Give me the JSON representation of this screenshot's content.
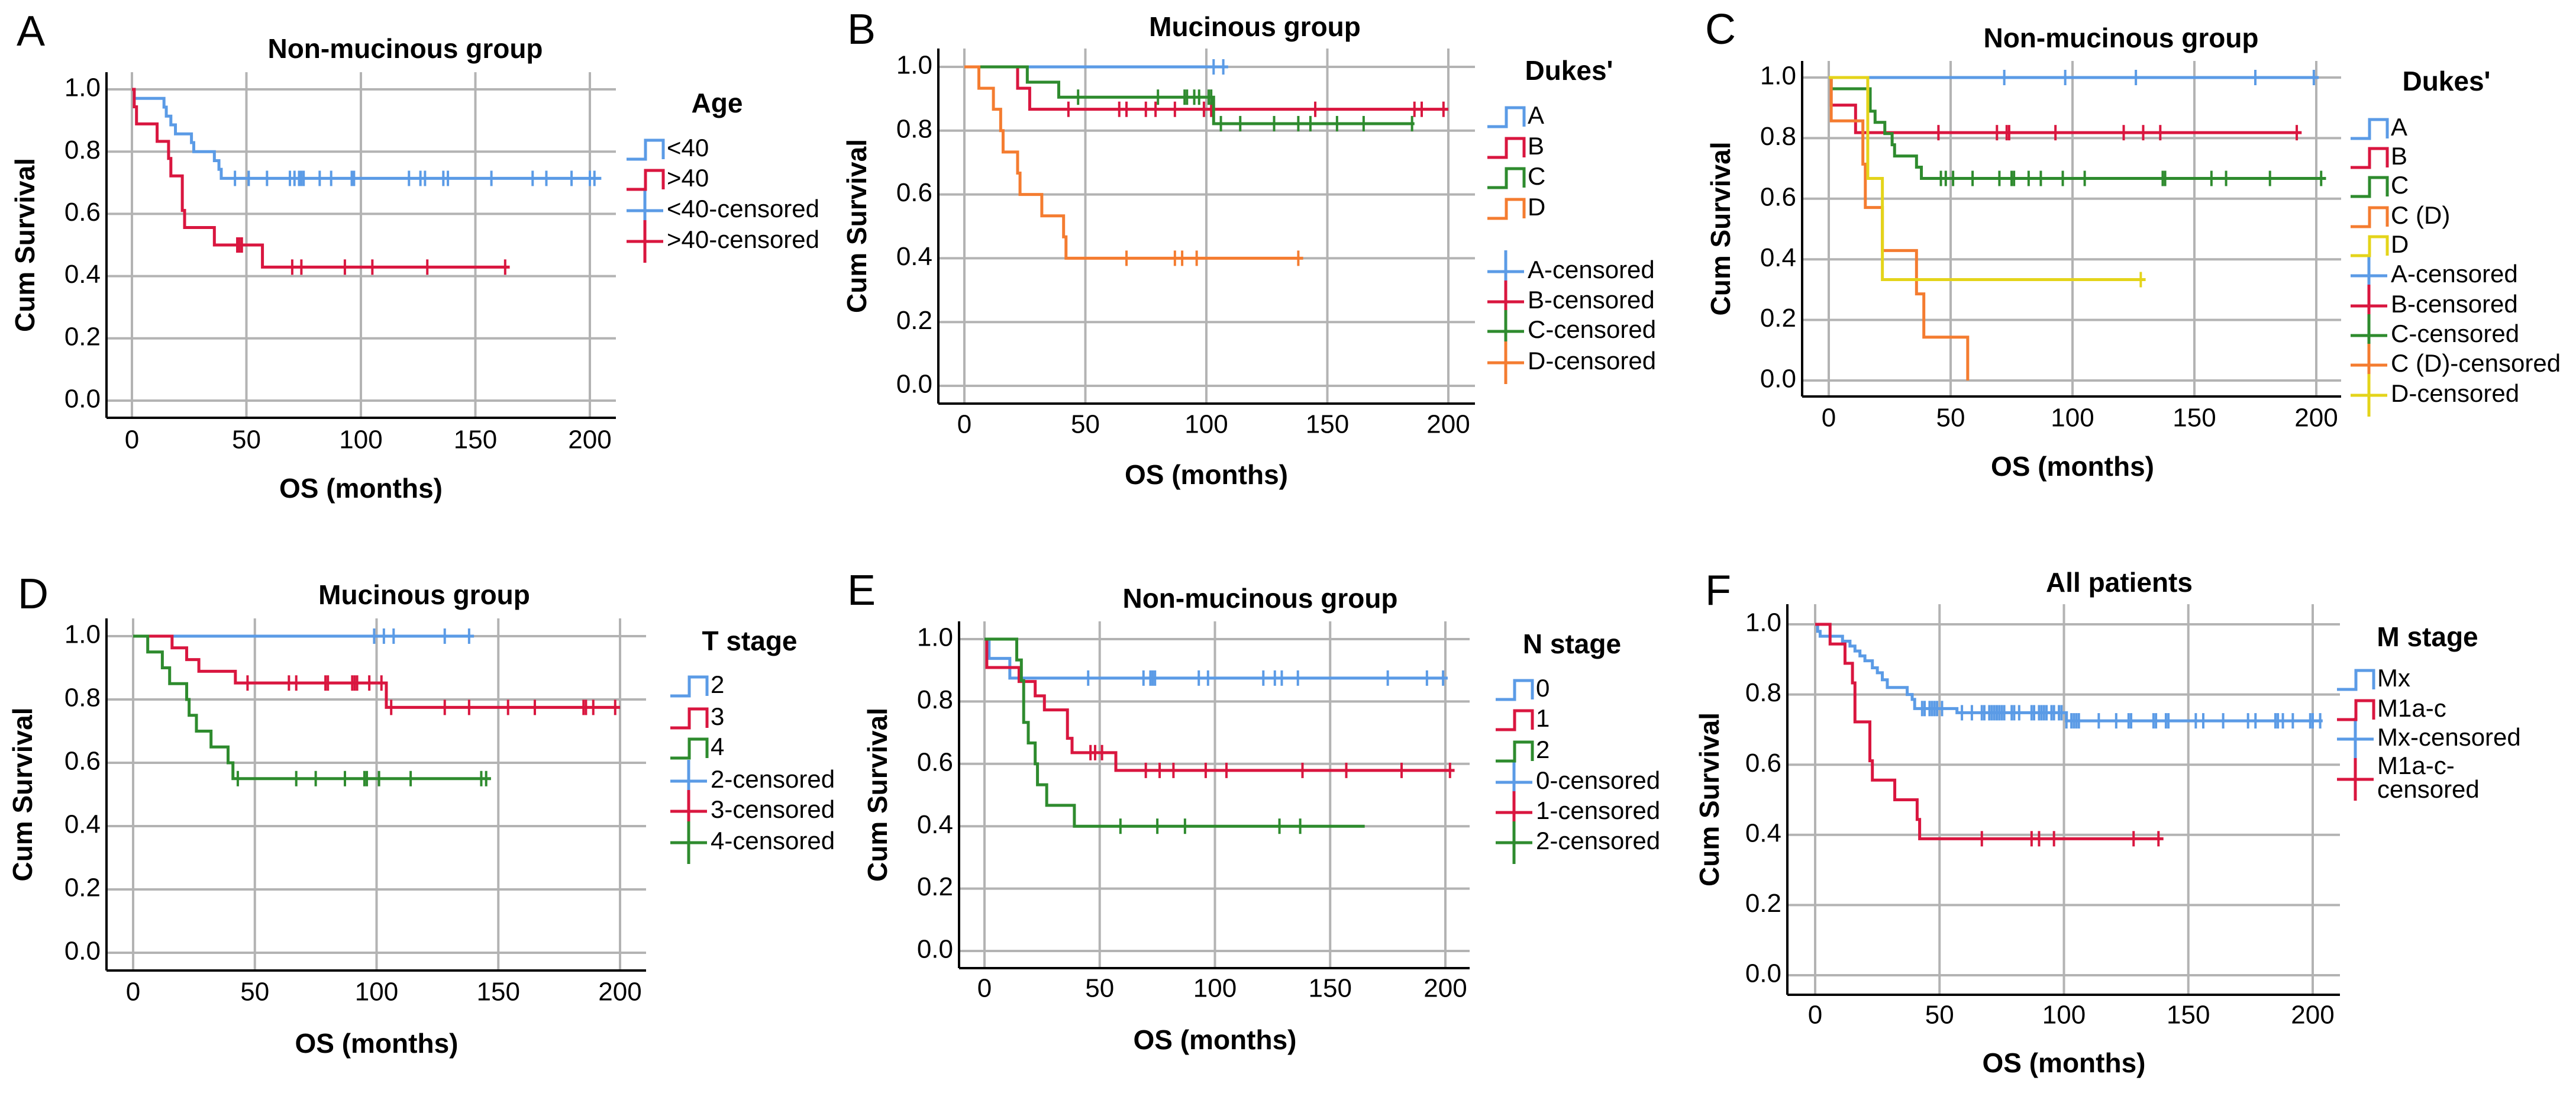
{
  "colors": {
    "blue": "#5b9be6",
    "red": "#d9163f",
    "green": "#2e8b2e",
    "orange": "#f47c30",
    "yellow": "#e4d41a",
    "grid": "#b3b3b3"
  },
  "chart_data": [
    {
      "panel": "A",
      "type": "line",
      "title": "Non-mucinous group",
      "xlabel": "OS (months)",
      "ylabel": "Cum Survival",
      "legend_title": "Age",
      "xlim": [
        0,
        200
      ],
      "ylim": [
        0,
        1
      ],
      "grid": true,
      "legend_placement": "right",
      "xticks": [
        "0",
        "50",
        "100",
        "150",
        "200"
      ],
      "yticks": [
        "0.0",
        "0.2",
        "0.4",
        "0.6",
        "0.8",
        "1.0"
      ],
      "series": [
        {
          "name": "<40",
          "censored_label": "<40-censored",
          "color": "#5b9be6",
          "end": 205,
          "steps": [
            [
              1,
              0.971
            ],
            [
              14,
              0.943
            ],
            [
              15,
              0.914
            ],
            [
              17,
              0.886
            ],
            [
              19,
              0.857
            ],
            [
              26,
              0.829
            ],
            [
              27,
              0.8
            ],
            [
              36,
              0.771
            ],
            [
              38,
              0.743
            ],
            [
              39,
              0.714
            ]
          ],
          "censored": [
            45,
            51,
            59,
            69,
            71,
            73,
            74,
            75,
            82,
            87,
            96,
            97,
            121,
            126,
            128,
            136,
            138,
            157,
            175,
            181,
            192,
            200,
            202
          ]
        },
        {
          "name": ">40",
          "censored_label": ">40-censored",
          "color": "#d9163f",
          "end": 165,
          "steps": [
            [
              1,
              0.944
            ],
            [
              2,
              0.889
            ],
            [
              11,
              0.833
            ],
            [
              16,
              0.778
            ],
            [
              17,
              0.722
            ],
            [
              22,
              0.611
            ],
            [
              23,
              0.556
            ],
            [
              36,
              0.5
            ],
            [
              57,
              0.429
            ]
          ],
          "censored": [
            46,
            47,
            48,
            70,
            74,
            93,
            105,
            129,
            163
          ]
        }
      ]
    },
    {
      "panel": "B",
      "type": "line",
      "title": "Mucinous group",
      "xlabel": "OS (months)",
      "ylabel": "Cum Survival",
      "legend_title": "Dukes'",
      "xlim": [
        0,
        200
      ],
      "ylim": [
        0,
        1
      ],
      "grid": true,
      "legend_placement": "right",
      "xticks": [
        "0",
        "50",
        "100",
        "150",
        "200"
      ],
      "yticks": [
        "0.0",
        "0.2",
        "0.4",
        "0.6",
        "0.8",
        "1.0"
      ],
      "series": [
        {
          "name": "A",
          "censored_label": "A-censored",
          "color": "#5b9be6",
          "end": 109,
          "steps": [],
          "censored": [
            103,
            107
          ]
        },
        {
          "name": "B",
          "censored_label": "B-censored",
          "color": "#d9163f",
          "end": 200,
          "steps": [
            [
              22,
              0.933
            ],
            [
              27,
              0.867
            ]
          ],
          "censored": [
            43,
            64,
            67,
            75,
            79,
            87,
            99,
            102,
            145,
            186,
            189,
            198
          ]
        },
        {
          "name": "C",
          "censored_label": "C-censored",
          "color": "#2e8b2e",
          "end": 186,
          "steps": [
            [
              26,
              0.952
            ],
            [
              39,
              0.905
            ],
            [
              103,
              0.822
            ]
          ],
          "censored": [
            47,
            80,
            91,
            92,
            95,
            97,
            101,
            102,
            106,
            114,
            128,
            138,
            143,
            154,
            165,
            185
          ]
        },
        {
          "name": "D",
          "censored_label": "D-censored",
          "color": "#f47c30",
          "end": 140,
          "steps": [
            [
              6,
              0.933
            ],
            [
              12,
              0.867
            ],
            [
              15,
              0.8
            ],
            [
              16,
              0.733
            ],
            [
              22,
              0.667
            ],
            [
              23,
              0.6
            ],
            [
              32,
              0.533
            ],
            [
              41,
              0.467
            ],
            [
              42,
              0.4
            ]
          ],
          "censored": [
            67,
            87,
            90,
            96,
            138
          ]
        }
      ]
    },
    {
      "panel": "C",
      "type": "line",
      "title": "Non-mucinous group",
      "xlabel": "OS (months)",
      "ylabel": "Cum Survival",
      "legend_title": "Dukes'",
      "xlim": [
        0,
        200
      ],
      "ylim": [
        0,
        1
      ],
      "grid": true,
      "legend_placement": "right",
      "xticks": [
        "0",
        "50",
        "100",
        "150",
        "200"
      ],
      "yticks": [
        "0.0",
        "0.2",
        "0.4",
        "0.6",
        "0.8",
        "1.0"
      ],
      "series": [
        {
          "name": "A",
          "censored_label": "A-censored",
          "color": "#5b9be6",
          "end": 201,
          "steps": [],
          "censored": [
            72,
            97,
            126,
            175,
            199
          ]
        },
        {
          "name": "B",
          "censored_label": "B-censored",
          "color": "#d9163f",
          "end": 194,
          "steps": [
            [
              1,
              0.909
            ],
            [
              11,
              0.818
            ]
          ],
          "censored": [
            45,
            69,
            73,
            74,
            93,
            121,
            129,
            136,
            192
          ]
        },
        {
          "name": "C",
          "censored_label": "C-censored",
          "color": "#2e8b2e",
          "end": 204,
          "steps": [
            [
              1,
              0.963
            ],
            [
              17,
              0.889
            ],
            [
              19,
              0.852
            ],
            [
              23,
              0.815
            ],
            [
              26,
              0.778
            ],
            [
              27,
              0.741
            ],
            [
              36,
              0.704
            ],
            [
              38,
              0.667
            ]
          ],
          "censored": [
            46,
            48,
            51,
            59,
            70,
            75,
            76,
            82,
            87,
            96,
            105,
            137,
            138,
            157,
            163,
            181,
            202
          ]
        },
        {
          "name": "C (D)",
          "censored_label": "C (D)-censored",
          "color": "#f47c30",
          "end": 57,
          "steps": [
            [
              1,
              0.857
            ],
            [
              14,
              0.714
            ],
            [
              15,
              0.571
            ],
            [
              22,
              0.429
            ],
            [
              36,
              0.286
            ],
            [
              39,
              0.143
            ],
            [
              57,
              0
            ]
          ],
          "censored": []
        },
        {
          "name": "D",
          "censored_label": "D-censored",
          "color": "#e4d41a",
          "end": 130,
          "steps": [
            [
              16,
              0.667
            ],
            [
              22,
              0.333
            ]
          ],
          "censored": [
            128
          ]
        }
      ]
    },
    {
      "panel": "D",
      "type": "line",
      "title": "Mucinous group",
      "xlabel": "OS (months)",
      "ylabel": "Cum Survival",
      "legend_title": "T stage",
      "xlim": [
        0,
        200
      ],
      "ylim": [
        0,
        1
      ],
      "grid": true,
      "legend_placement": "right",
      "xticks": [
        "0",
        "50",
        "100",
        "150",
        "200"
      ],
      "yticks": [
        "0.0",
        "0.2",
        "0.4",
        "0.6",
        "0.8",
        "1.0"
      ],
      "series": [
        {
          "name": "2",
          "censored_label": "2-censored",
          "color": "#5b9be6",
          "end": 140,
          "steps": [],
          "censored": [
            99,
            103,
            107,
            128,
            138
          ]
        },
        {
          "name": "3",
          "censored_label": "3-censored",
          "color": "#d9163f",
          "end": 200,
          "steps": [
            [
              16,
              0.963
            ],
            [
              22,
              0.926
            ],
            [
              27,
              0.889
            ],
            [
              42,
              0.852
            ],
            [
              104,
              0.775
            ]
          ],
          "censored": [
            47,
            64,
            67,
            79,
            80,
            90,
            91,
            92,
            97,
            102,
            106,
            128,
            138,
            154,
            165,
            185,
            186,
            189,
            198
          ]
        },
        {
          "name": "4",
          "censored_label": "4-censored",
          "color": "#2e8b2e",
          "end": 147,
          "steps": [
            [
              6,
              0.95
            ],
            [
              12,
              0.9
            ],
            [
              15,
              0.85
            ],
            [
              22,
              0.8
            ],
            [
              23,
              0.75
            ],
            [
              26,
              0.7
            ],
            [
              32,
              0.65
            ],
            [
              39,
              0.6
            ],
            [
              41,
              0.55
            ]
          ],
          "censored": [
            43,
            67,
            75,
            87,
            95,
            96,
            101,
            114,
            143,
            145
          ]
        }
      ]
    },
    {
      "panel": "E",
      "type": "line",
      "title": "Non-mucinous group",
      "xlabel": "OS (months)",
      "ylabel": "Cum Survival",
      "legend_title": "N stage",
      "xlim": [
        0,
        200
      ],
      "ylim": [
        0,
        1
      ],
      "grid": true,
      "legend_placement": "right",
      "xticks": [
        "0",
        "50",
        "100",
        "150",
        "200"
      ],
      "yticks": [
        "0.0",
        "0.2",
        "0.4",
        "0.6",
        "0.8",
        "1.0"
      ],
      "series": [
        {
          "name": "0",
          "censored_label": "0-censored",
          "color": "#5b9be6",
          "end": 201,
          "steps": [
            [
              2,
              0.938
            ],
            [
              11,
              0.875
            ]
          ],
          "censored": [
            45,
            69,
            72,
            73,
            74,
            93,
            97,
            121,
            126,
            129,
            136,
            175,
            192,
            199
          ]
        },
        {
          "name": "1",
          "censored_label": "1-censored",
          "color": "#d9163f",
          "end": 204,
          "steps": [
            [
              1,
              0.909
            ],
            [
              15,
              0.864
            ],
            [
              22,
              0.818
            ],
            [
              26,
              0.773
            ],
            [
              36,
              0.682
            ],
            [
              38,
              0.636
            ],
            [
              57,
              0.579
            ]
          ],
          "censored": [
            46,
            48,
            51,
            70,
            76,
            82,
            96,
            105,
            138,
            157,
            181,
            202
          ]
        },
        {
          "name": "2",
          "censored_label": "2-censored",
          "color": "#2e8b2e",
          "end": 165,
          "steps": [
            [
              14,
              0.933
            ],
            [
              16,
              0.867
            ],
            [
              17,
              0.733
            ],
            [
              19,
              0.667
            ],
            [
              22,
              0.6
            ],
            [
              23,
              0.533
            ],
            [
              27,
              0.467
            ],
            [
              39,
              0.4
            ]
          ],
          "censored": [
            59,
            75,
            87,
            128,
            137
          ]
        }
      ]
    },
    {
      "panel": "F",
      "type": "line",
      "title": "All patients",
      "xlabel": "OS (months)",
      "ylabel": "Cum Survival",
      "legend_title": "M stage",
      "xlim": [
        0,
        200
      ],
      "ylim": [
        0,
        1
      ],
      "grid": true,
      "legend_placement": "right",
      "xticks": [
        "0",
        "50",
        "100",
        "150",
        "200"
      ],
      "yticks": [
        "0.0",
        "0.2",
        "0.4",
        "0.6",
        "0.8",
        "1.0"
      ],
      "series": [
        {
          "name": "Mx",
          "censored_label": [
            "Mx-censored"
          ],
          "color": "#5b9be6",
          "end": 204,
          "steps": [
            [
              1,
              0.98
            ],
            [
              2,
              0.966
            ],
            [
              11,
              0.952
            ],
            [
              14,
              0.938
            ],
            [
              16,
              0.924
            ],
            [
              18,
              0.91
            ],
            [
              20,
              0.896
            ],
            [
              23,
              0.876
            ],
            [
              25,
              0.862
            ],
            [
              27,
              0.842
            ],
            [
              29,
              0.82
            ],
            [
              37,
              0.8
            ],
            [
              39,
              0.786
            ],
            [
              40,
              0.76
            ],
            [
              57,
              0.748
            ],
            [
              101,
              0.725
            ]
          ],
          "censored": [
            43,
            44,
            46,
            47,
            48,
            49,
            51,
            59,
            63,
            67,
            68,
            70,
            71,
            72,
            73,
            74,
            75,
            76,
            79,
            80,
            82,
            87,
            88,
            90,
            91,
            92,
            93,
            95,
            96,
            98,
            99,
            101,
            103,
            104,
            105,
            106,
            114,
            121,
            126,
            127,
            136,
            137,
            141,
            142,
            153,
            156,
            164,
            174,
            177,
            185,
            186,
            188,
            192,
            199,
            200,
            203
          ]
        },
        {
          "name": "M1a-c",
          "censored_label": [
            "M1a-c-",
            "censored"
          ],
          "color": "#d9163f",
          "end": 140,
          "steps": [
            [
              6,
              0.944
            ],
            [
              12,
              0.889
            ],
            [
              15,
              0.833
            ],
            [
              16,
              0.722
            ],
            [
              22,
              0.611
            ],
            [
              23,
              0.556
            ],
            [
              32,
              0.5
            ],
            [
              41,
              0.444
            ],
            [
              42,
              0.389
            ]
          ],
          "censored": [
            67,
            87,
            90,
            96,
            128,
            138
          ]
        }
      ]
    }
  ]
}
